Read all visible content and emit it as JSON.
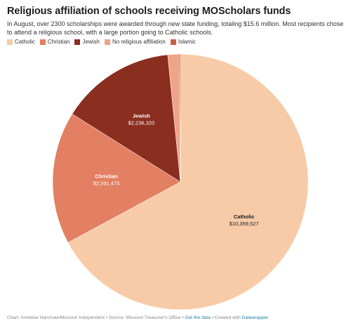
{
  "header": {
    "title": "Religious affiliation of schools receiving MOScholars funds",
    "description": "In August, over 2300 scholarships were awarded through new state funding, totaling $15.6 million. Most recipients chose to attend a religious school, with a large portion going to Catholic schools."
  },
  "chart_data": {
    "type": "pie",
    "title": "Religious affiliation of schools receiving MOScholars funds",
    "legend_placement": "top-left",
    "slices": [
      {
        "name": "Catholic",
        "value": 10359527,
        "label": "$10,359,527",
        "color": "#f7cba8",
        "show_label": true
      },
      {
        "name": "Christian",
        "value": 2591475,
        "label": "$2,591,475",
        "color": "#e37f62",
        "show_label": true
      },
      {
        "name": "Jewish",
        "value": 2236320,
        "label": "$2,236,320",
        "color": "#8a2e1f",
        "show_label": true
      },
      {
        "name": "No religious affiliation",
        "value": 220000,
        "color": "#f0a487",
        "show_label": false
      },
      {
        "name": "Islamic",
        "value": 25000,
        "color": "#c8603f",
        "show_label": false
      }
    ]
  },
  "footer": {
    "credit": "Chart: Annelise Hanshaw/Missouri Independent • Source: Missouri Treasurer's Office • ",
    "get_data": "Get the data",
    "created_with": " • Created with ",
    "brand": "Datawrapper"
  }
}
